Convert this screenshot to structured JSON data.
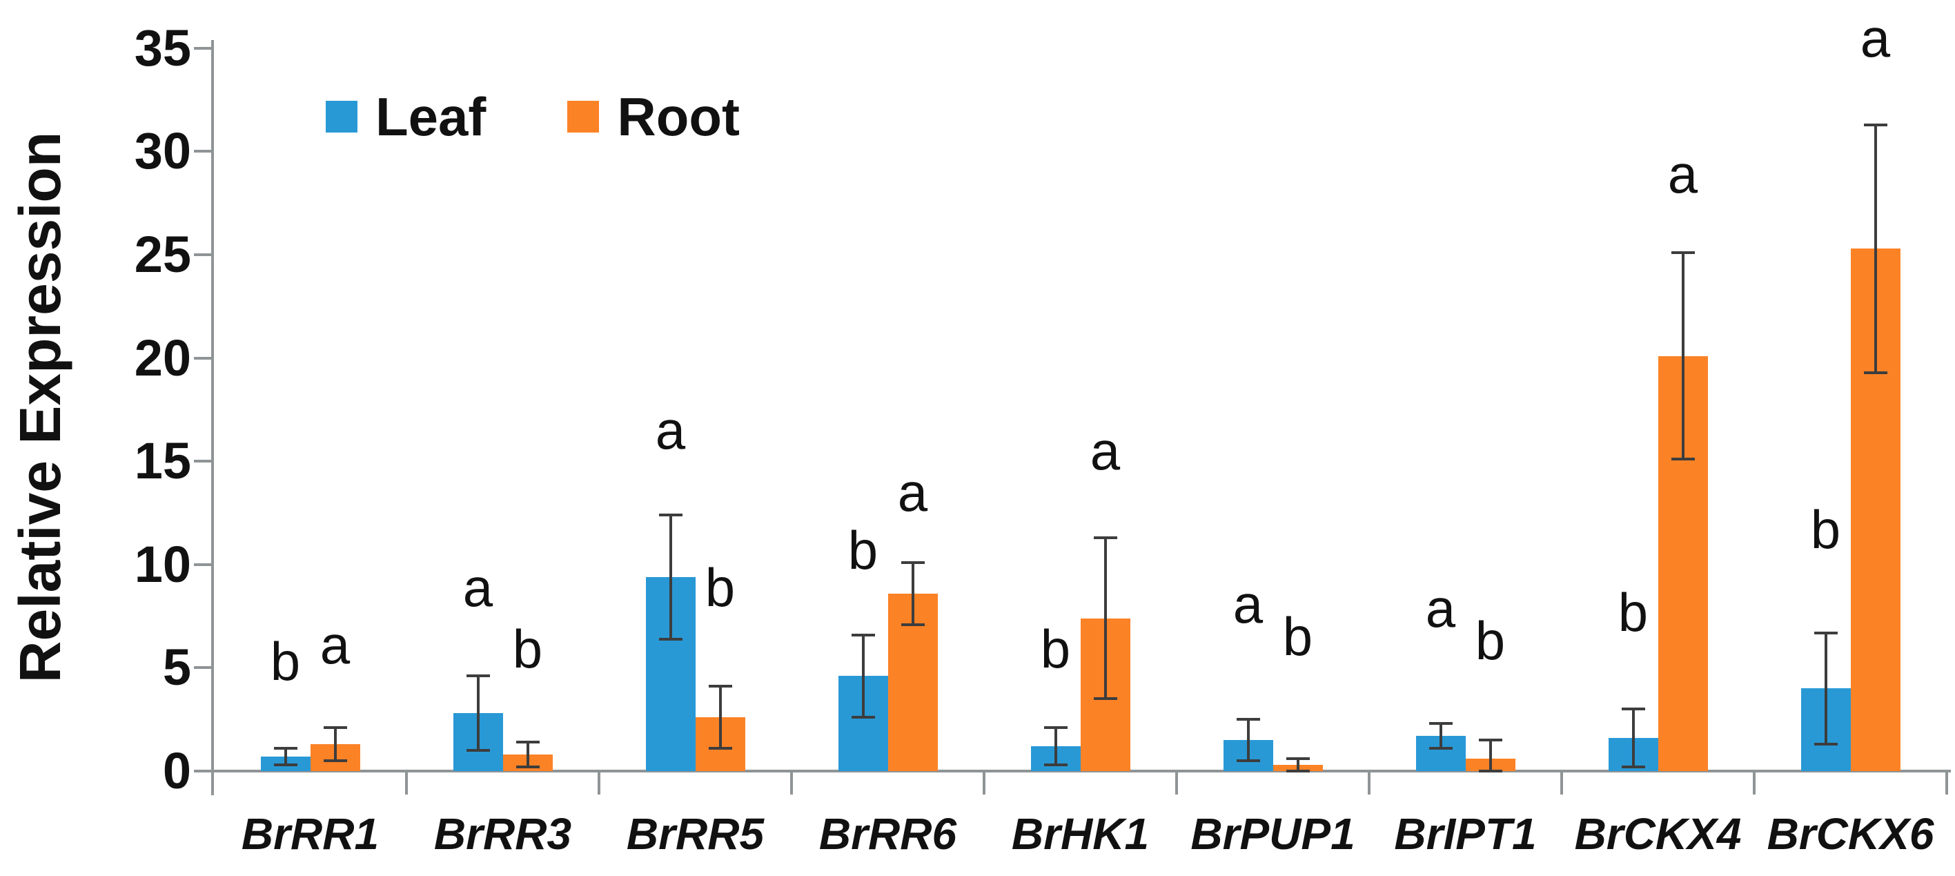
{
  "chart_data": {
    "type": "bar",
    "title": "",
    "ylabel": "Relative Expression",
    "xlabel": "",
    "ylim": [
      0,
      35
    ],
    "yticks": [
      0,
      5,
      10,
      15,
      20,
      25,
      30,
      35
    ],
    "grid": false,
    "legend": {
      "position": "top-left-inset",
      "entries": [
        {
          "label": "Leaf",
          "color": "#2999D6"
        },
        {
          "label": "Root",
          "color": "#FC8226"
        }
      ]
    },
    "categories": [
      "BrRR1",
      "BrRR3",
      "BrRR5",
      "BrRR6",
      "BrHK1",
      "BrPUP1",
      "BrIPT1",
      "BrCKX4",
      "BrCKX6"
    ],
    "series": [
      {
        "name": "Leaf",
        "color": "#2999D6",
        "values": [
          0.7,
          2.8,
          9.4,
          4.6,
          1.2,
          1.5,
          1.7,
          1.6,
          4.0
        ],
        "errors": [
          0.4,
          1.8,
          3.0,
          2.0,
          0.9,
          1.0,
          0.6,
          1.4,
          2.7
        ],
        "letters": [
          "b",
          "a",
          "a",
          "b",
          "b",
          "a",
          "a",
          "b",
          "b"
        ],
        "letter_y": [
          4.0,
          7.6,
          15.2,
          9.4,
          4.6,
          6.8,
          6.6,
          6.4,
          10.4
        ]
      },
      {
        "name": "Root",
        "color": "#FC8226",
        "values": [
          1.3,
          0.8,
          2.6,
          8.6,
          7.4,
          0.3,
          0.6,
          20.1,
          25.3
        ],
        "errors": [
          0.8,
          0.6,
          1.5,
          1.5,
          3.9,
          0.3,
          0.9,
          5.0,
          6.0
        ],
        "letters": [
          "a",
          "b",
          "b",
          "a",
          "a",
          "b",
          "b",
          "a",
          "a"
        ],
        "letter_y": [
          4.8,
          4.6,
          7.6,
          12.2,
          14.2,
          5.2,
          5.0,
          27.6,
          34.2
        ]
      }
    ],
    "axis_color": "#8F9496",
    "error_bar_color": "#3D3D3D",
    "text_color": "#111111",
    "background_color": "#FFFFFF"
  }
}
